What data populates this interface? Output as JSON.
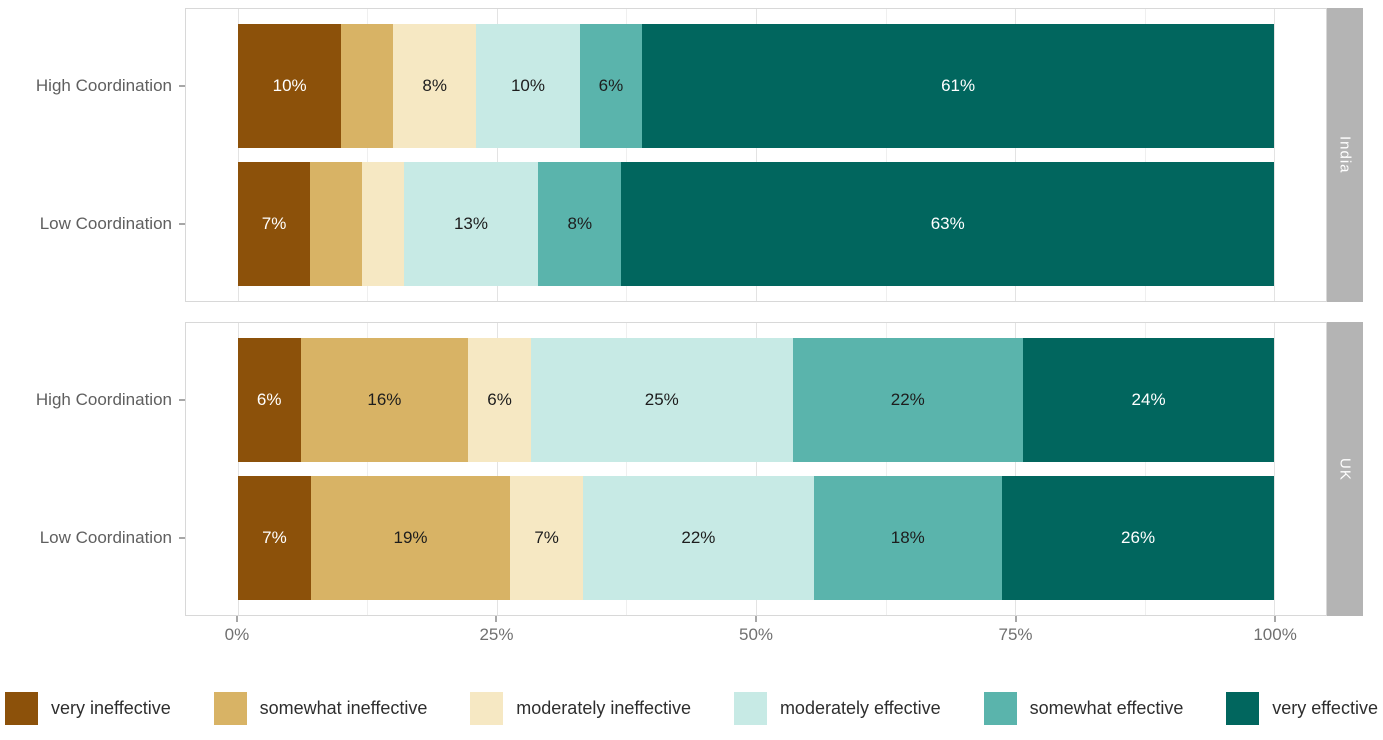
{
  "chart_data": {
    "type": "bar",
    "orientation": "horizontal",
    "stacked": true,
    "unit": "percent",
    "xlim": [
      0,
      100
    ],
    "grid": true,
    "legend_position": "bottom",
    "facet_strip_side": "right",
    "facets": [
      "India",
      "UK"
    ],
    "row_categories": [
      "High Coordination",
      "Low Coordination"
    ],
    "series_names": [
      "very ineffective",
      "somewhat ineffective",
      "moderately ineffective",
      "moderately effective",
      "somewhat effective",
      "very effective"
    ],
    "x_ticks": [
      {
        "label": "0%",
        "value": 0
      },
      {
        "label": "25%",
        "value": 25
      },
      {
        "label": "50%",
        "value": 50
      },
      {
        "label": "75%",
        "value": 75
      },
      {
        "label": "100%",
        "value": 100
      }
    ],
    "minor_grid_values": [
      12.5,
      37.5,
      62.5,
      87.5
    ],
    "groups": [
      {
        "facet": "India",
        "category": "High Coordination",
        "values": [
          10,
          5,
          8,
          10,
          6,
          61
        ],
        "labels": [
          "10%",
          "",
          "8%",
          "10%",
          "6%",
          "61%"
        ]
      },
      {
        "facet": "India",
        "category": "Low Coordination",
        "values": [
          7,
          5,
          4,
          13,
          8,
          63
        ],
        "labels": [
          "7%",
          "",
          "",
          "13%",
          "8%",
          "63%"
        ]
      },
      {
        "facet": "UK",
        "category": "High Coordination",
        "values": [
          6,
          16,
          6,
          25,
          22,
          24
        ],
        "labels": [
          "6%",
          "16%",
          "6%",
          "25%",
          "22%",
          "24%"
        ]
      },
      {
        "facet": "UK",
        "category": "Low Coordination",
        "values": [
          7,
          19,
          7,
          22,
          18,
          26
        ],
        "labels": [
          "7%",
          "19%",
          "7%",
          "22%",
          "18%",
          "26%"
        ]
      }
    ]
  },
  "legend": {
    "items": [
      "very ineffective",
      "somewhat ineffective",
      "moderately ineffective",
      "moderately effective",
      "somewhat effective",
      "very effective"
    ]
  },
  "style": {
    "series_colors": [
      "#8C510A",
      "#D8B365",
      "#F6E8C3",
      "#C7EAE5",
      "#5AB4AC",
      "#01665E"
    ],
    "series_label_colors": [
      "#ffffff",
      "#1d1d1d",
      "#1d1d1d",
      "#1d1d1d",
      "#1d1d1d",
      "#ffffff"
    ],
    "strip_bg": "#b4b4b4",
    "strip_text": "#ffffff",
    "grid_major": "#e3e3e3",
    "grid_minor": "#efefef",
    "panel_border": "#d8d8d8",
    "axis_text": "#707070",
    "y_axis_text": "#5f5f5f",
    "tick_color": "#4f4f4f"
  }
}
